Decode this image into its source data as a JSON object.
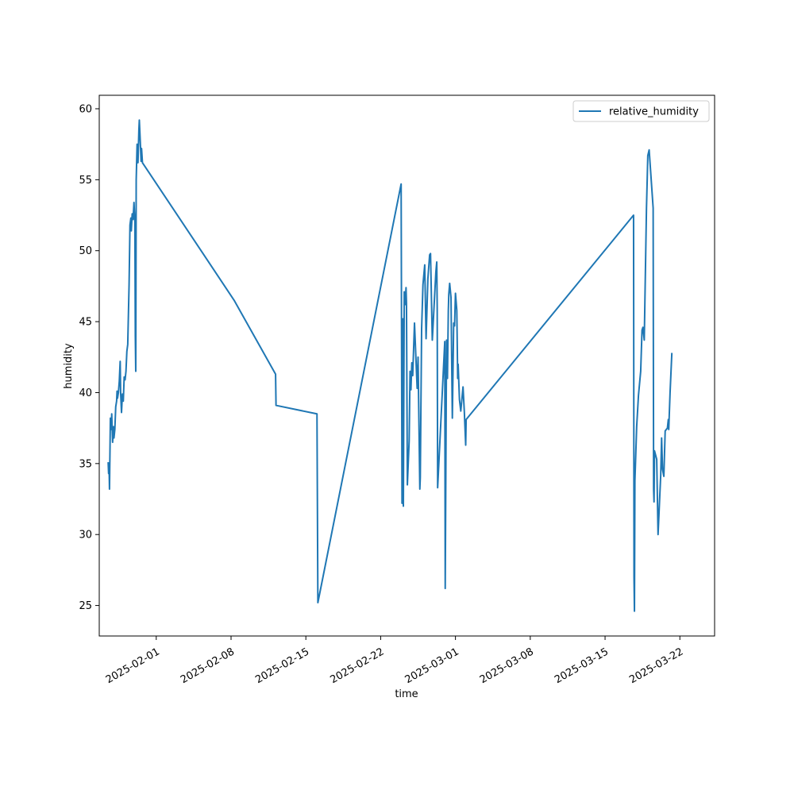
{
  "chart_data": {
    "type": "line",
    "title": "",
    "xlabel": "time",
    "ylabel": "humidity",
    "xlim": [
      "2025-01-26T16:00",
      "2025-03-25T06:00"
    ],
    "ylim": [
      22.85,
      60.95
    ],
    "x_ticks": [
      "2025-02-01",
      "2025-02-08",
      "2025-02-15",
      "2025-02-22",
      "2025-03-01",
      "2025-03-08",
      "2025-03-15",
      "2025-03-22"
    ],
    "y_ticks": [
      25,
      30,
      35,
      40,
      45,
      50,
      55,
      60
    ],
    "grid": false,
    "legend": {
      "position": "upper right",
      "entries": [
        "relative_humidity"
      ]
    },
    "colors": {
      "series": "#1f77b4"
    },
    "series": [
      {
        "name": "relative_humidity",
        "points": [
          [
            "2025-01-27T12:00",
            35.1
          ],
          [
            "2025-01-27T13:00",
            34.3
          ],
          [
            "2025-01-27T14:00",
            35.0
          ],
          [
            "2025-01-27T15:00",
            33.2
          ],
          [
            "2025-01-27T17:00",
            38.2
          ],
          [
            "2025-01-27T19:00",
            37.4
          ],
          [
            "2025-01-27T20:00",
            38.5
          ],
          [
            "2025-01-27T22:00",
            36.5
          ],
          [
            "2025-01-28T00:00",
            37.6
          ],
          [
            "2025-01-28T01:00",
            36.8
          ],
          [
            "2025-01-28T03:00",
            37.4
          ],
          [
            "2025-01-28T05:00",
            39.0
          ],
          [
            "2025-01-28T07:00",
            39.4
          ],
          [
            "2025-01-28T08:00",
            40.1
          ],
          [
            "2025-01-28T09:00",
            39.6
          ],
          [
            "2025-01-28T11:00",
            40.0
          ],
          [
            "2025-01-28T13:00",
            40.8
          ],
          [
            "2025-01-28T15:00",
            42.2
          ],
          [
            "2025-01-28T16:00",
            40.0
          ],
          [
            "2025-01-28T18:00",
            38.6
          ],
          [
            "2025-01-28T20:00",
            39.9
          ],
          [
            "2025-01-28T22:00",
            39.4
          ],
          [
            "2025-01-29T00:00",
            41.1
          ],
          [
            "2025-01-29T02:00",
            40.9
          ],
          [
            "2025-01-29T04:00",
            41.5
          ],
          [
            "2025-01-29T06:00",
            42.9
          ],
          [
            "2025-01-29T08:00",
            43.4
          ],
          [
            "2025-01-29T10:00",
            46.2
          ],
          [
            "2025-01-29T11:00",
            47.6
          ],
          [
            "2025-01-29T13:00",
            51.8
          ],
          [
            "2025-01-29T15:00",
            52.3
          ],
          [
            "2025-01-29T16:00",
            51.4
          ],
          [
            "2025-01-29T18:00",
            52.6
          ],
          [
            "2025-01-29T20:00",
            52.2
          ],
          [
            "2025-01-29T22:00",
            53.4
          ],
          [
            "2025-01-30T00:00",
            52.0
          ],
          [
            "2025-01-30T01:00",
            44.0
          ],
          [
            "2025-01-30T02:00",
            41.5
          ],
          [
            "2025-01-30T03:00",
            55.0
          ],
          [
            "2025-01-30T05:00",
            57.5
          ],
          [
            "2025-01-30T07:00",
            56.2
          ],
          [
            "2025-01-30T09:00",
            58.5
          ],
          [
            "2025-01-30T10:00",
            59.2
          ],
          [
            "2025-01-30T12:00",
            57.8
          ],
          [
            "2025-01-30T14:00",
            56.3
          ],
          [
            "2025-01-30T15:00",
            57.2
          ],
          [
            "2025-01-30T17:00",
            56.2
          ],
          [
            "2025-02-08T07:00",
            46.5
          ],
          [
            "2025-02-12T04:00",
            41.3
          ],
          [
            "2025-02-12T05:00",
            39.1
          ],
          [
            "2025-02-16T01:00",
            38.5
          ],
          [
            "2025-02-16T03:00",
            25.2
          ],
          [
            "2025-02-23T22:00",
            54.7
          ],
          [
            "2025-02-24T00:00",
            32.2
          ],
          [
            "2025-02-24T02:00",
            45.2
          ],
          [
            "2025-02-24T03:00",
            32.0
          ],
          [
            "2025-02-24T05:00",
            47.1
          ],
          [
            "2025-02-24T07:00",
            46.2
          ],
          [
            "2025-02-24T09:00",
            47.4
          ],
          [
            "2025-02-24T10:00",
            46.3
          ],
          [
            "2025-02-24T12:00",
            33.5
          ],
          [
            "2025-02-24T16:00",
            36.6
          ],
          [
            "2025-02-24T18:00",
            41.5
          ],
          [
            "2025-02-24T20:00",
            40.2
          ],
          [
            "2025-02-24T22:00",
            42.1
          ],
          [
            "2025-02-25T00:00",
            41.2
          ],
          [
            "2025-02-25T04:00",
            44.9
          ],
          [
            "2025-02-25T08:00",
            41.8
          ],
          [
            "2025-02-25T10:00",
            40.3
          ],
          [
            "2025-02-25T12:00",
            42.5
          ],
          [
            "2025-02-25T16:00",
            33.2
          ],
          [
            "2025-02-25T17:00",
            34.0
          ],
          [
            "2025-02-25T20:00",
            44.5
          ],
          [
            "2025-02-25T23:00",
            47.6
          ],
          [
            "2025-02-26T03:00",
            49.0
          ],
          [
            "2025-02-26T06:00",
            43.8
          ],
          [
            "2025-02-26T10:00",
            48.0
          ],
          [
            "2025-02-26T14:00",
            49.7
          ],
          [
            "2025-02-26T16:00",
            49.8
          ],
          [
            "2025-02-26T20:00",
            43.7
          ],
          [
            "2025-02-27T00:00",
            46.1
          ],
          [
            "2025-02-27T04:00",
            48.5
          ],
          [
            "2025-02-27T06:00",
            49.2
          ],
          [
            "2025-02-27T07:00",
            46.0
          ],
          [
            "2025-02-27T08:00",
            33.3
          ],
          [
            "2025-02-28T00:00",
            43.6
          ],
          [
            "2025-02-28T01:00",
            26.2
          ],
          [
            "2025-02-28T04:00",
            43.7
          ],
          [
            "2025-02-28T06:00",
            41.0
          ],
          [
            "2025-02-28T08:00",
            45.8
          ],
          [
            "2025-02-28T09:00",
            46.9
          ],
          [
            "2025-02-28T11:00",
            47.7
          ],
          [
            "2025-02-28T14:00",
            46.7
          ],
          [
            "2025-02-28T17:00",
            38.2
          ],
          [
            "2025-02-28T20:00",
            44.9
          ],
          [
            "2025-02-28T22:00",
            44.7
          ],
          [
            "2025-03-01T00:00",
            47.0
          ],
          [
            "2025-03-01T03:00",
            45.8
          ],
          [
            "2025-03-01T05:00",
            41.0
          ],
          [
            "2025-03-01T06:00",
            42.0
          ],
          [
            "2025-03-01T09:00",
            39.5
          ],
          [
            "2025-03-01T12:00",
            38.7
          ],
          [
            "2025-03-01T17:00",
            40.4
          ],
          [
            "2025-03-01T20:00",
            38.6
          ],
          [
            "2025-03-01T23:00",
            36.3
          ],
          [
            "2025-03-02T00:00",
            38.1
          ],
          [
            "2025-03-17T16:00",
            52.5
          ],
          [
            "2025-03-17T17:00",
            27.0
          ],
          [
            "2025-03-17T18:00",
            24.6
          ],
          [
            "2025-03-17T19:00",
            33.8
          ],
          [
            "2025-03-17T23:00",
            37.6
          ],
          [
            "2025-03-18T03:00",
            39.8
          ],
          [
            "2025-03-18T08:00",
            41.5
          ],
          [
            "2025-03-18T11:00",
            44.4
          ],
          [
            "2025-03-18T13:00",
            44.6
          ],
          [
            "2025-03-18T16:00",
            43.7
          ],
          [
            "2025-03-18T21:00",
            53.0
          ],
          [
            "2025-03-19T00:00",
            56.7
          ],
          [
            "2025-03-19T03:00",
            57.1
          ],
          [
            "2025-03-19T12:00",
            53.0
          ],
          [
            "2025-03-19T13:00",
            33.2
          ],
          [
            "2025-03-19T14:00",
            32.3
          ],
          [
            "2025-03-19T15:00",
            35.9
          ],
          [
            "2025-03-19T20:00",
            35.3
          ],
          [
            "2025-03-19T23:00",
            30.0
          ],
          [
            "2025-03-20T05:00",
            34.2
          ],
          [
            "2025-03-20T07:00",
            36.8
          ],
          [
            "2025-03-20T09:00",
            34.6
          ],
          [
            "2025-03-20T12:00",
            34.1
          ],
          [
            "2025-03-20T15:00",
            37.3
          ],
          [
            "2025-03-20T20:00",
            37.5
          ],
          [
            "2025-03-20T22:00",
            38.1
          ],
          [
            "2025-03-20T23:00",
            37.4
          ],
          [
            "2025-03-21T02:00",
            40.0
          ],
          [
            "2025-03-21T06:00",
            42.8
          ]
        ]
      }
    ]
  }
}
